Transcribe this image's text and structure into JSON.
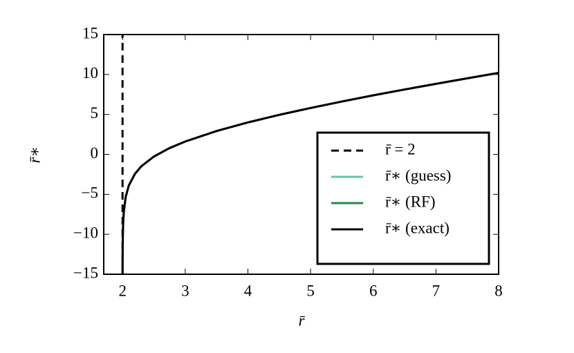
{
  "chart_data": {
    "type": "line",
    "xlabel": "r̄",
    "ylabel": "r̄∗",
    "xlim": [
      1.7,
      8
    ],
    "ylim": [
      -15,
      15
    ],
    "xticks": [
      2,
      3,
      4,
      5,
      6,
      7,
      8
    ],
    "yticks": [
      {
        "value": -15,
        "label": "−15"
      },
      {
        "value": -10,
        "label": "−10"
      },
      {
        "value": -5,
        "label": "−5"
      },
      0,
      5,
      10,
      15
    ],
    "legend": "lower right",
    "series": [
      {
        "name": "r̄ = 2",
        "color": "#000000",
        "dashed": true,
        "x": [
          2,
          2
        ],
        "values": [
          -15,
          15
        ]
      },
      {
        "name": "r̄∗ (guess)",
        "color": "#66c2a4",
        "x": [
          2.0004,
          2.001,
          2.005,
          2.01,
          2.02,
          2.05,
          2.1,
          2.2,
          2.3,
          2.5,
          2.75,
          3,
          3.5,
          4,
          4.5,
          5,
          5.5,
          6,
          6.5,
          7,
          7.5,
          8
        ],
        "values": [
          -15.0,
          -13.2,
          -9.98,
          -8.59,
          -7.19,
          -5.33,
          -3.89,
          -2.41,
          -1.49,
          -0.27,
          0.79,
          1.61,
          2.92,
          4.0,
          4.95,
          5.81,
          6.62,
          7.39,
          8.12,
          8.83,
          9.52,
          10.2
        ]
      },
      {
        "name": "r̄∗ (RF)",
        "color": "#238b45",
        "x": [
          2.0004,
          2.001,
          2.005,
          2.01,
          2.02,
          2.05,
          2.1,
          2.2,
          2.3,
          2.5,
          2.75,
          3,
          3.5,
          4,
          4.5,
          5,
          5.5,
          6,
          6.5,
          7,
          7.5,
          8
        ],
        "values": [
          -15.0,
          -13.2,
          -9.98,
          -8.59,
          -7.19,
          -5.33,
          -3.89,
          -2.41,
          -1.49,
          -0.27,
          0.79,
          1.61,
          2.92,
          4.0,
          4.95,
          5.81,
          6.62,
          7.39,
          8.12,
          8.83,
          9.52,
          10.2
        ]
      },
      {
        "name": "r̄∗ (exact)",
        "color": "#000000",
        "x": [
          2.0004,
          2.001,
          2.005,
          2.01,
          2.02,
          2.05,
          2.1,
          2.2,
          2.3,
          2.5,
          2.75,
          3,
          3.5,
          4,
          4.5,
          5,
          5.5,
          6,
          6.5,
          7,
          7.5,
          8
        ],
        "values": [
          -15.0,
          -13.2,
          -9.98,
          -8.59,
          -7.19,
          -5.33,
          -3.89,
          -2.41,
          -1.49,
          -0.27,
          0.79,
          1.61,
          2.92,
          4.0,
          4.95,
          5.81,
          6.62,
          7.39,
          8.12,
          8.83,
          9.52,
          10.2
        ]
      }
    ]
  }
}
